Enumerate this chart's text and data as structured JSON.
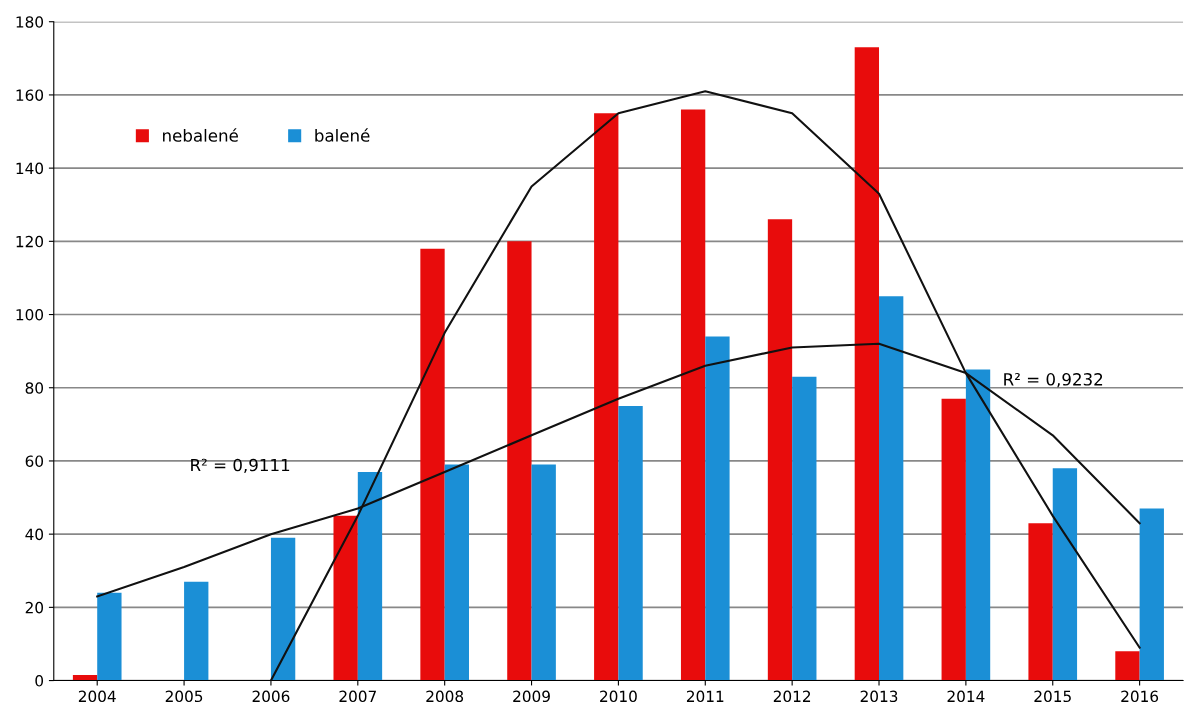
{
  "chart_data": {
    "type": "bar",
    "categories": [
      "2004",
      "2005",
      "2006",
      "2007",
      "2008",
      "2009",
      "2010",
      "2011",
      "2012",
      "2013",
      "2014",
      "2015",
      "2016"
    ],
    "series": [
      {
        "name": "nebalené",
        "color": "#e80c0c",
        "values": [
          1.5,
          0,
          0,
          45,
          118,
          120,
          155,
          156,
          126,
          173,
          77,
          43,
          8
        ]
      },
      {
        "name": "balené",
        "color": "#1b8fd6",
        "values": [
          24,
          27,
          39,
          57,
          59,
          59,
          75,
          94,
          83,
          105,
          85,
          58,
          47
        ]
      },
      {
        "type": "line",
        "color": "#111111",
        "values": [
          null,
          null,
          0,
          45,
          95,
          135,
          155,
          161,
          155,
          133,
          84,
          45,
          9
        ]
      },
      {
        "type": "line",
        "color": "#111111",
        "values": [
          23,
          31,
          40,
          47,
          57,
          67,
          77,
          86,
          91,
          92,
          84,
          67,
          43
        ]
      }
    ],
    "ylim": [
      0,
      180
    ],
    "yticks": [
      0,
      20,
      40,
      60,
      80,
      100,
      120,
      140,
      160,
      180
    ],
    "grid": "y",
    "legend": "top left",
    "annotations": [
      "R² = 0,9111",
      "R² = 0,9232"
    ]
  }
}
